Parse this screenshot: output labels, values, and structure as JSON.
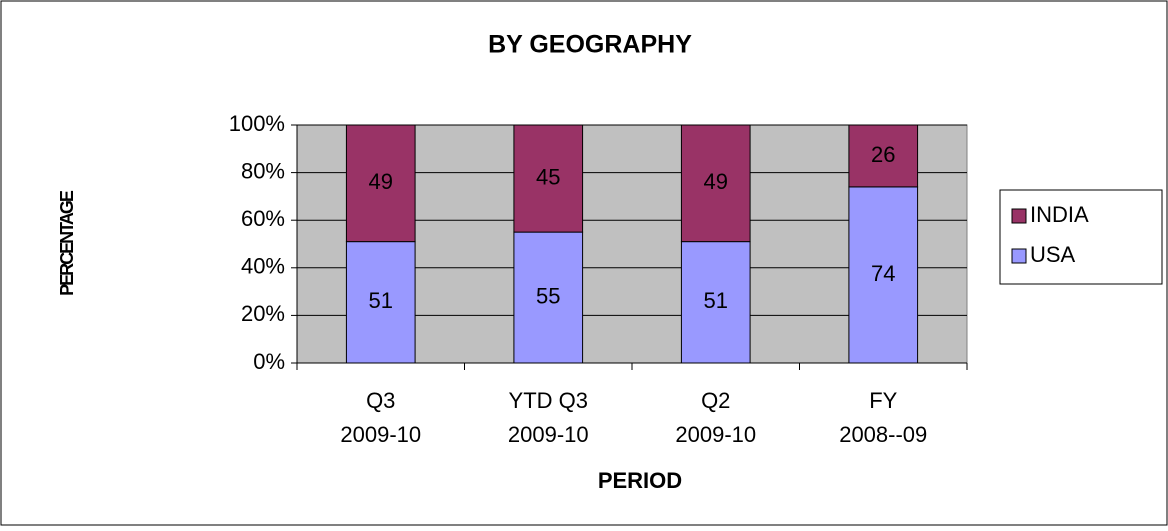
{
  "chart_data": {
    "type": "stacked_bar_100",
    "title": "BY GEOGRAPHY",
    "xlabel": "PERIOD",
    "ylabel": "PERCENTAGE",
    "categories": [
      "Q3 2009-10",
      "YTD Q3 2009-10",
      "Q2 2009-10",
      "FY 2008--09"
    ],
    "series": [
      {
        "name": "USA",
        "color": "#9999ff",
        "values": [
          51,
          55,
          51,
          74
        ]
      },
      {
        "name": "INDIA",
        "color": "#993366",
        "values": [
          49,
          45,
          49,
          26
        ]
      }
    ],
    "ylim": [
      0,
      100
    ],
    "yticks": [
      {
        "value": 0,
        "label": "0%"
      },
      {
        "value": 20,
        "label": "20%"
      },
      {
        "value": 40,
        "label": "40%"
      },
      {
        "value": 60,
        "label": "60%"
      },
      {
        "value": 80,
        "label": "80%"
      },
      {
        "value": 100,
        "label": "100%"
      }
    ],
    "grid": true,
    "plot_background": "#c0c0c0",
    "legend": "right"
  }
}
